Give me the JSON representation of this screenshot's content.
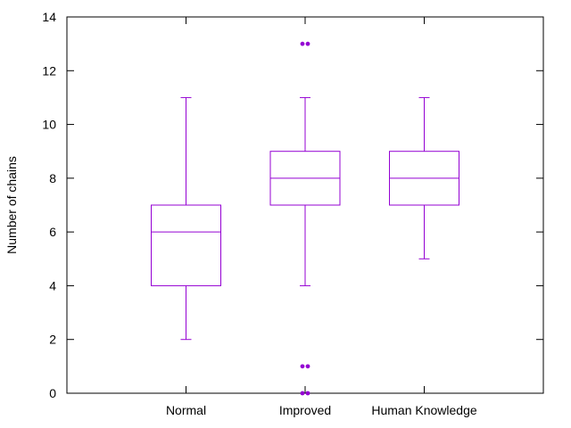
{
  "chart_data": {
    "type": "boxplot",
    "title": "",
    "xlabel": "",
    "ylabel": "Number of chains",
    "ylim": [
      0,
      14
    ],
    "yticks": [
      0,
      2,
      4,
      6,
      8,
      10,
      12,
      14
    ],
    "grid": false,
    "legend": "none",
    "colors": {
      "box": "#9400d3",
      "axis": "#000000"
    },
    "categories": [
      "Normal",
      "Improved",
      "Human Knowledge"
    ],
    "series": [
      {
        "category": "Normal",
        "whisker_low": 2,
        "q1": 4,
        "median": 6,
        "q3": 7,
        "whisker_high": 11,
        "outliers": []
      },
      {
        "category": "Improved",
        "whisker_low": 4,
        "q1": 7,
        "median": 8,
        "q3": 9,
        "whisker_high": 11,
        "outliers": [
          13,
          1,
          0
        ]
      },
      {
        "category": "Human Knowledge",
        "whisker_low": 5,
        "q1": 7,
        "median": 8,
        "q3": 9,
        "whisker_high": 11,
        "outliers": []
      }
    ]
  }
}
